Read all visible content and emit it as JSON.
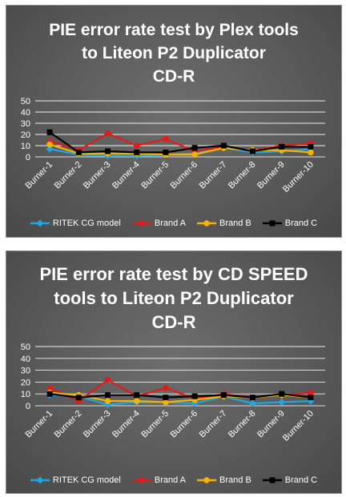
{
  "chart_data": [
    {
      "type": "line",
      "title_lines": [
        "PIE error rate test by Plex tools",
        "to Liteon P2 Duplicator",
        "CD-R"
      ],
      "categories": [
        "Burner-1",
        "Burner-2",
        "Burner-3",
        "Burner-4",
        "Burner-5",
        "Burner-6",
        "Burner-7",
        "Burner-8",
        "Burner-9",
        "Burner-10"
      ],
      "y_ticks": [
        "50",
        "40",
        "30",
        "20",
        "10",
        "0"
      ],
      "ylim": [
        0,
        50
      ],
      "grid": true,
      "legend_position": "bottom",
      "series": [
        {
          "name": "RITEK CG model",
          "color": "#1ea7e6",
          "marker": "diamond",
          "values": [
            7,
            2,
            1,
            1,
            2,
            3,
            8,
            4,
            5,
            7
          ]
        },
        {
          "name": "Brand A",
          "color": "#e21b1b",
          "marker": "circle",
          "values": [
            14,
            6,
            21,
            10,
            16,
            5,
            9,
            6,
            10,
            12
          ]
        },
        {
          "name": "Brand B",
          "color": "#f4b400",
          "marker": "circle",
          "values": [
            11,
            3,
            3,
            3,
            2,
            2,
            8,
            6,
            6,
            4
          ]
        },
        {
          "name": "Brand C",
          "color": "#000000",
          "marker": "square",
          "values": [
            22,
            4,
            5,
            4,
            4,
            8,
            10,
            5,
            9,
            9
          ]
        }
      ]
    },
    {
      "type": "line",
      "title_lines": [
        "PIE error rate test by CD SPEED",
        "tools to Liteon P2 Duplicator",
        "CD-R"
      ],
      "categories": [
        "Burner-1",
        "Burner-2",
        "Burner-3",
        "Burner-4",
        "Burner-5",
        "Burner-6",
        "Burner-7",
        "Burner-8",
        "Burner-9",
        "Burner-10"
      ],
      "y_ticks": [
        "50",
        "40",
        "30",
        "20",
        "10",
        "0"
      ],
      "ylim": [
        0,
        50
      ],
      "grid": true,
      "legend_position": "bottom",
      "series": [
        {
          "name": "RITEK CG model",
          "color": "#1ea7e6",
          "marker": "diamond",
          "values": [
            9,
            8,
            1,
            3,
            3,
            2,
            8,
            2,
            3,
            4
          ]
        },
        {
          "name": "Brand A",
          "color": "#e21b1b",
          "marker": "circle",
          "values": [
            15,
            4,
            22,
            8,
            15,
            6,
            10,
            7,
            9,
            11
          ]
        },
        {
          "name": "Brand B",
          "color": "#f4b400",
          "marker": "circle",
          "values": [
            11,
            9,
            4,
            4,
            3,
            5,
            8,
            7,
            9,
            7
          ]
        },
        {
          "name": "Brand C",
          "color": "#000000",
          "marker": "square",
          "values": [
            10,
            7,
            9,
            9,
            7,
            8,
            9,
            7,
            10,
            7
          ]
        }
      ]
    }
  ]
}
